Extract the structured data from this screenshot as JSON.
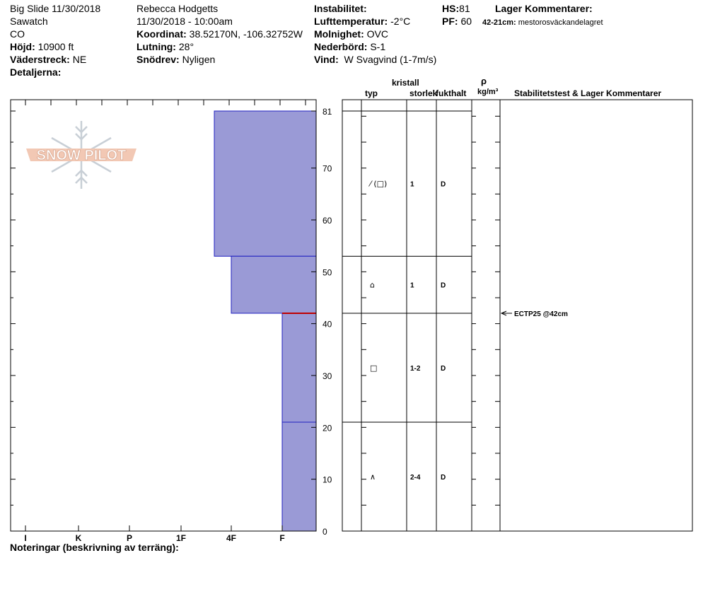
{
  "header": {
    "col1": {
      "site": "Big Slide 11/30/2018",
      "range": "Sawatch",
      "state": "CO",
      "elev_label": "Höjd:",
      "elev_value": "10900 ft",
      "aspect_label": "Väderstreck:",
      "aspect_value": "NE",
      "details_label": "Detaljerna:"
    },
    "col2": {
      "observer": "Rebecca Hodgetts",
      "datetime": "11/30/2018 - 10:00am",
      "coord_label": "Koordinat:",
      "coord_value": "38.52170N, -106.32752W",
      "slope_label": "Lutning:",
      "slope_value": "28°",
      "wind_load_label": "Snödrev:",
      "wind_load_value": "Nyligen"
    },
    "col3": {
      "instability_label": "Instabilitet:",
      "air_temp_label": "Lufttemperatur:",
      "air_temp_value": "-2°C",
      "sky_label": "Molnighet:",
      "sky_value": "OVC",
      "precip_label": "Nederbörd:",
      "precip_value": "S-1",
      "wind_label": "Vind:",
      "wind_value": "W Svagvind (1-7m/s)"
    },
    "col4": {
      "hs_label": "HS:",
      "hs_value": "81",
      "pf_label": "PF:",
      "pf_value": "60",
      "layer_comments_label": "Lager Kommentarer:",
      "layer_comment_range": "42-21cm:",
      "layer_comment_text": "mestorosväckandelagret"
    }
  },
  "table_headers": {
    "crystal": "kristall",
    "type": "typ",
    "size": "storlek",
    "moisture": "fukthalt",
    "rho": "ρ",
    "density_unit": "kg/m³",
    "stability": "Stabilitetstest & Lager Kommentarer"
  },
  "notes_label": "Noteringar (beskrivning av terräng):",
  "logo_text": "SNOW PILOT",
  "colors": {
    "layer_fill": "#9a9ad6",
    "layer_edge": "#2020c0",
    "weak_layer": "#c00000"
  },
  "chart_data": {
    "type": "bar",
    "y_axis": {
      "min": 0,
      "max": 81,
      "ticks": [
        0,
        10,
        20,
        30,
        40,
        50,
        60,
        70,
        81
      ]
    },
    "x_axis": {
      "categories": [
        "I",
        "K",
        "P",
        "1F",
        "4F",
        "F"
      ]
    },
    "layers": [
      {
        "top": 81,
        "bottom": 53,
        "hardness": "1F+",
        "grain_symbol": "⁄ (□)",
        "size": "1",
        "moisture": "D"
      },
      {
        "top": 53,
        "bottom": 42,
        "hardness": "4F+",
        "grain_symbol": "⌂",
        "size": "1",
        "moisture": "D"
      },
      {
        "top": 42,
        "bottom": 21,
        "hardness": "F",
        "grain_symbol": "□",
        "size": "1-2",
        "moisture": "D"
      },
      {
        "top": 21,
        "bottom": 0,
        "hardness": "F",
        "grain_symbol": "∧",
        "size": "2-4",
        "moisture": "D"
      }
    ],
    "weak_layer_depth": 42,
    "tests": [
      {
        "depth": 42,
        "label": "ECTP25 @42cm"
      }
    ]
  }
}
